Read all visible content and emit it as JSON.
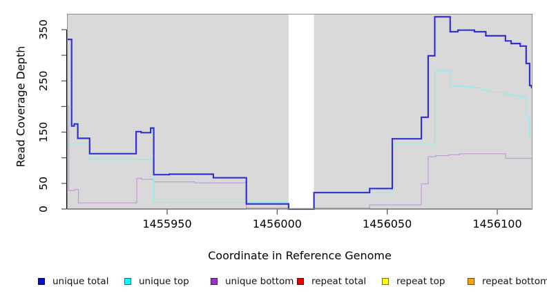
{
  "chart_data": {
    "type": "line",
    "title": "",
    "xlabel": "Coordinate in Reference Genome",
    "ylabel": "Read Coverage Depth",
    "xlim": [
      1455904.5,
      1456116
    ],
    "ylim": [
      0,
      350
    ],
    "grid": "off",
    "plot_bg": "#d9d9d9",
    "plot_border": "#8c8c8c",
    "tick_color": "#4d4d4d",
    "x_ticks": [
      {
        "value": 1455950,
        "label": "1455950"
      },
      {
        "value": 1456000,
        "label": "1456000"
      },
      {
        "value": 1456050,
        "label": "1456050"
      },
      {
        "value": 1456100,
        "label": "1456100"
      }
    ],
    "y_ticks": [
      {
        "value": 0,
        "label": "0"
      },
      {
        "value": 50,
        "label": "50"
      },
      {
        "value": 100,
        "label": ""
      },
      {
        "value": 150,
        "label": "150"
      },
      {
        "value": 200,
        "label": ""
      },
      {
        "value": 250,
        "label": "250"
      },
      {
        "value": 300,
        "label": ""
      },
      {
        "value": 350,
        "label": "350"
      }
    ],
    "gap_region": {
      "x_start": 1456005.2,
      "x_end": 1456016.7,
      "color": "#ffffff"
    },
    "series": [
      {
        "name": "unique bottom",
        "line_color": "#c9a2dd",
        "width": 1.4,
        "layer": 1,
        "steps": [
          [
            1455904.5,
            201
          ],
          [
            1455905.3,
            36
          ],
          [
            1455907.8,
            38
          ],
          [
            1455909.7,
            12
          ],
          [
            1455936.2,
            60
          ],
          [
            1455938.5,
            58
          ],
          [
            1455943.9,
            53
          ],
          [
            1455962.5,
            51
          ],
          [
            1455986,
            0
          ],
          [
            1456042,
            8
          ],
          [
            1456065.5,
            49
          ],
          [
            1456068.6,
            102
          ],
          [
            1456072,
            104
          ],
          [
            1456078,
            106
          ],
          [
            1456083,
            108
          ],
          [
            1456103.7,
            99
          ]
        ]
      },
      {
        "name": "unique top",
        "line_color": "#9aeaea",
        "width": 1.4,
        "layer": 2,
        "steps": [
          [
            1455904.5,
            128
          ],
          [
            1455914.8,
            97
          ],
          [
            1455935.9,
            96
          ],
          [
            1455942.5,
            100
          ],
          [
            1455943.9,
            13
          ],
          [
            1455986,
            14
          ],
          [
            1456005.2,
            0
          ],
          [
            1456016.7,
            32
          ],
          [
            1456052.3,
            128
          ],
          [
            1456071.6,
            270
          ],
          [
            1456078.6,
            240
          ],
          [
            1456086,
            238
          ],
          [
            1456089.6,
            236
          ],
          [
            1456093,
            232
          ],
          [
            1456096,
            228
          ],
          [
            1456103.7,
            224
          ],
          [
            1456107,
            221
          ],
          [
            1456110.4,
            219
          ],
          [
            1456113.1,
            179
          ],
          [
            1456114.7,
            138
          ],
          [
            1456115.6,
            134
          ]
        ]
      },
      {
        "name": "repeat top",
        "line_color": "#ffff00",
        "width": 1.4,
        "layer": 3,
        "steps": [
          [
            1455904.5,
            0
          ]
        ]
      },
      {
        "name": "repeat bottom",
        "line_color": "#ffa500",
        "width": 2,
        "layer": 4,
        "steps": [
          [
            1455904.5,
            0
          ]
        ]
      },
      {
        "name": "repeat total",
        "line_color": "#cc5f7a",
        "width": 1.6,
        "layer": 5,
        "steps": [
          [
            1455904.5,
            0
          ],
          [
            1455986,
            1
          ],
          [
            1456042,
            0
          ]
        ]
      },
      {
        "name": "unique total",
        "line_color": "#3131d2",
        "width": 2.2,
        "layer": 6,
        "steps": [
          [
            1455904.5,
            331
          ],
          [
            1455906.6,
            162
          ],
          [
            1455907.8,
            166
          ],
          [
            1455909.4,
            138
          ],
          [
            1455914.8,
            108
          ],
          [
            1455935.9,
            151
          ],
          [
            1455938.2,
            149
          ],
          [
            1455942.5,
            158
          ],
          [
            1455943.9,
            67
          ],
          [
            1455951,
            68
          ],
          [
            1455971,
            61
          ],
          [
            1455986,
            10
          ],
          [
            1456005.2,
            0
          ],
          [
            1456016.7,
            32
          ],
          [
            1456042,
            40
          ],
          [
            1456052.3,
            137
          ],
          [
            1456065.5,
            179
          ],
          [
            1456068.6,
            299
          ],
          [
            1456071.6,
            375
          ],
          [
            1456078.6,
            346
          ],
          [
            1456082.1,
            349
          ],
          [
            1456089.6,
            346
          ],
          [
            1456094.8,
            338
          ],
          [
            1456103.7,
            328
          ],
          [
            1456106.3,
            323
          ],
          [
            1456110.4,
            318
          ],
          [
            1456113.1,
            284
          ],
          [
            1456114.7,
            241
          ],
          [
            1456115.6,
            237
          ]
        ]
      }
    ],
    "legend": [
      {
        "label": "unique total",
        "color": "#0d0dcf"
      },
      {
        "label": "unique top",
        "color": "#00ffff"
      },
      {
        "label": "unique bottom",
        "color": "#9932cc"
      },
      {
        "label": "repeat total",
        "color": "#ee0000"
      },
      {
        "label": "repeat top",
        "color": "#ffff00"
      },
      {
        "label": "repeat bottom",
        "color": "#ffa500"
      }
    ],
    "legend_position": "bottom"
  }
}
